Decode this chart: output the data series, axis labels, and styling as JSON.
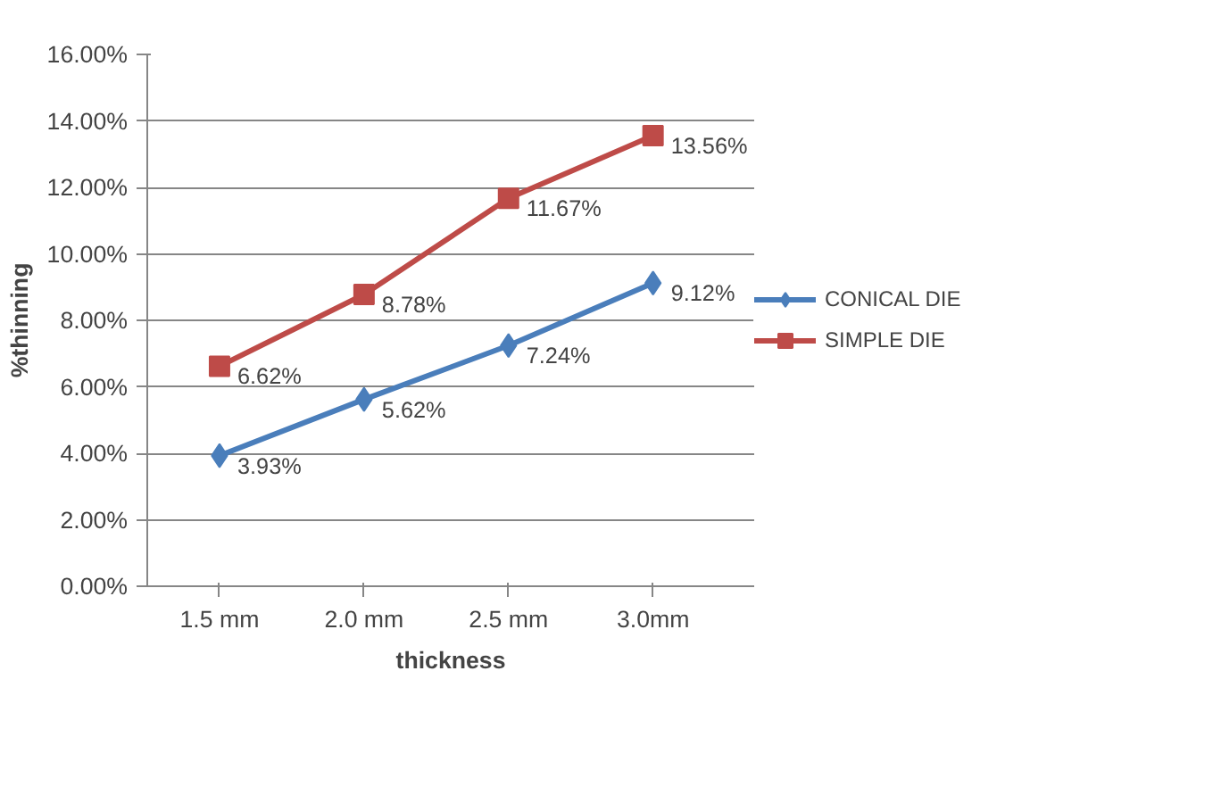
{
  "chart_data": {
    "type": "line",
    "xlabel": "thickness",
    "ylabel": "%thinning",
    "categories": [
      "1.5 mm",
      "2.0 mm",
      "2.5 mm",
      "3.0mm"
    ],
    "ylim": [
      0,
      16
    ],
    "yticks": [
      {
        "value": 0,
        "label": "0.00%"
      },
      {
        "value": 2,
        "label": "2.00%"
      },
      {
        "value": 4,
        "label": "4.00%"
      },
      {
        "value": 6,
        "label": "6.00%"
      },
      {
        "value": 8,
        "label": "8.00%"
      },
      {
        "value": 10,
        "label": "10.00%"
      },
      {
        "value": 12,
        "label": "12.00%"
      },
      {
        "value": 14,
        "label": "14.00%"
      },
      {
        "value": 16,
        "label": "16.00%"
      }
    ],
    "grid": "y",
    "legend": "right",
    "line_style": "solid",
    "series": [
      {
        "name": "CONICAL DIE",
        "color": "#4a7ebb",
        "marker": "diamond",
        "values": [
          3.93,
          5.62,
          7.24,
          9.12
        ],
        "value_labels": [
          "3.93%",
          "5.62%",
          "7.24%",
          "9.12%"
        ]
      },
      {
        "name": "SIMPLE DIE",
        "color": "#be4b48",
        "marker": "square",
        "values": [
          6.62,
          8.78,
          11.67,
          13.56
        ],
        "value_labels": [
          "6.62%",
          "8.78%",
          "11.67%",
          "13.56%"
        ]
      }
    ]
  }
}
